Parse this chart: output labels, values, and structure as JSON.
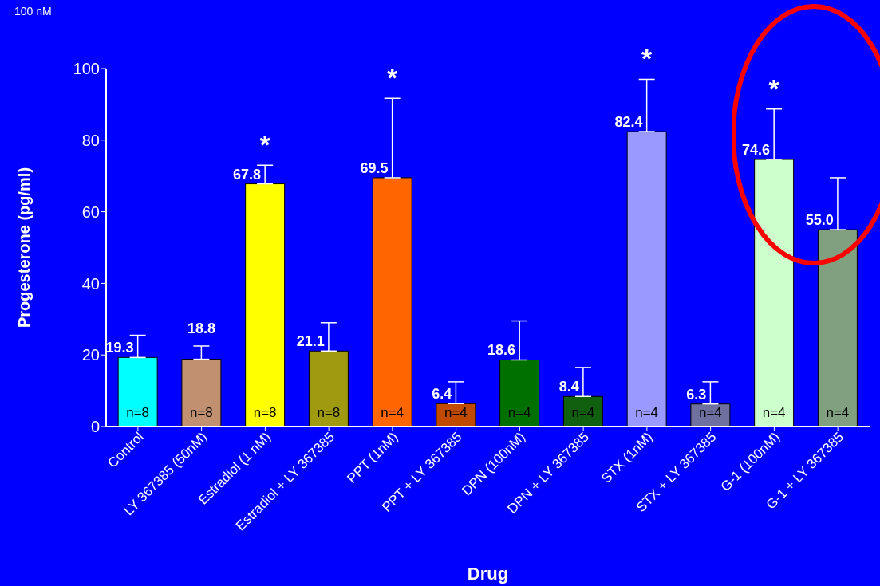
{
  "chart_data": {
    "type": "bar",
    "xlabel": "Drug",
    "ylabel": "Progesterone (pg/ml)",
    "categories": [
      "Control",
      "LY 367385 (50nM)",
      "Estradiol (1 nM)",
      "Estradiol + LY 367385",
      "PPT (1nM)",
      "PPT + LY 367385",
      "DPN (100nM)",
      "DPN + LY 367385",
      "STX (1nM)",
      "STX + LY 367385",
      "G-1 (100nM)",
      "G-1 + LY 367385"
    ],
    "values": [
      19.3,
      18.8,
      67.8,
      21.1,
      69.5,
      6.4,
      18.6,
      8.4,
      82.4,
      6.3,
      74.6,
      55.0
    ],
    "colors": [
      "#00ffff",
      "#c09070",
      "#ffff00",
      "#a09a10",
      "#ff6600",
      "#c04a00",
      "#007000",
      "#106010",
      "#9999ff",
      "#7070a0",
      "#ccffcc",
      "#80a080"
    ],
    "errors": [
      [
        19.3,
        25.5
      ],
      [
        18.8,
        22.5
      ],
      [
        67.8,
        73
      ],
      [
        21.1,
        29
      ],
      [
        69.5,
        91.7
      ],
      [
        6.4,
        12.5
      ],
      [
        18.6,
        29.5
      ],
      [
        8.4,
        16.5
      ],
      [
        82.4,
        97
      ],
      [
        6.3,
        12.5
      ],
      [
        74.6,
        88.7
      ],
      [
        55.0,
        69.5
      ]
    ],
    "value_labels": [
      "19.3",
      "18.8",
      "67.8",
      "21.1",
      "69.5",
      "6.4",
      "18.6",
      "8.4",
      "82.4",
      "6.3",
      "74.6",
      "55.0"
    ],
    "ylim": [
      0,
      100
    ],
    "yticks": [
      0,
      20,
      40,
      60,
      80,
      100
    ],
    "grid": false,
    "legend": false,
    "annotations": [
      "100 nM",
      "*",
      "*",
      "*",
      "*",
      "n=8",
      "n=8",
      "n=8",
      "n=8",
      "n=4",
      "n=4",
      "n=4",
      "n=4",
      "n=4",
      "n=4",
      "n=4",
      "n=4"
    ]
  }
}
